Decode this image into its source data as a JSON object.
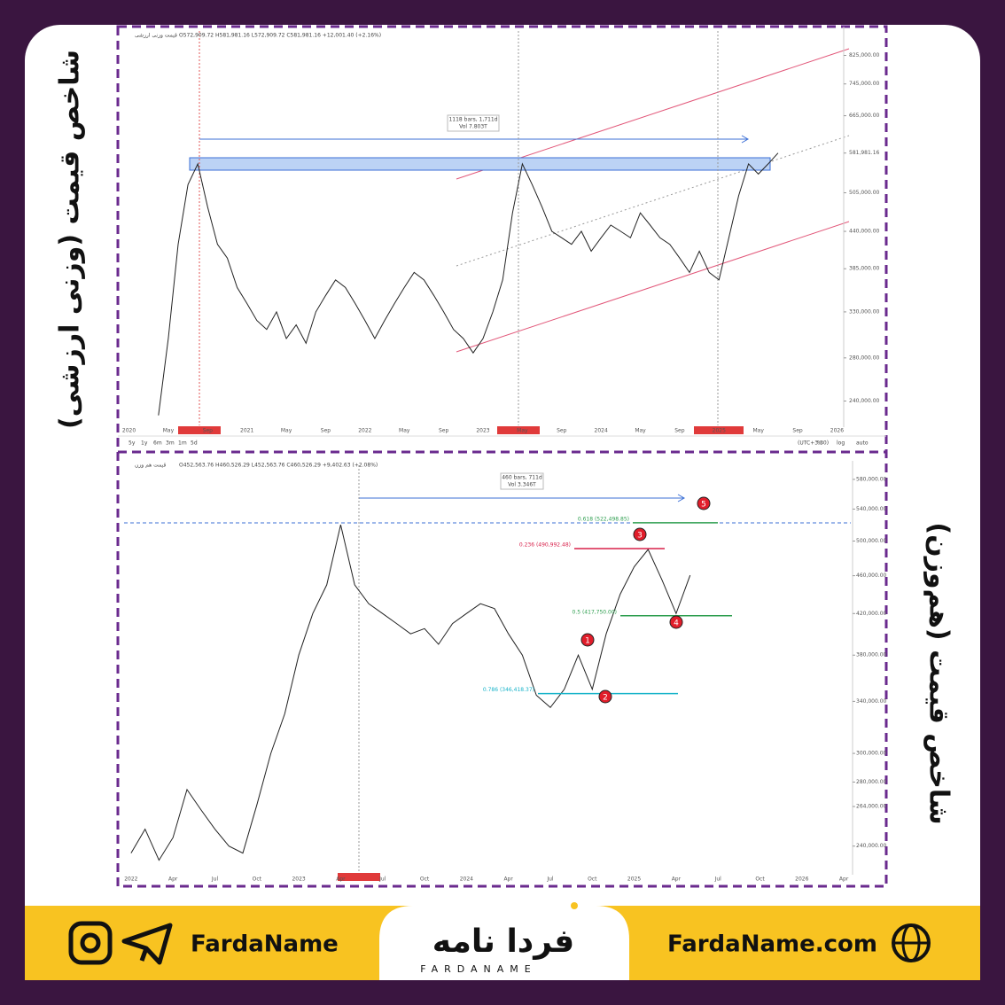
{
  "chart_data": [
    {
      "type": "line",
      "title": "قیمت وزنی ارزشی",
      "subtitle": "O572,909.72 H581,981.16 L572,909.72 C581,981.16 +12,001.40 (+2.16%)",
      "measure": [
        "1118 bars, 1,711d",
        "Vol 7.803T"
      ],
      "categories": [
        "2020",
        null,
        null,
        null,
        "May",
        null,
        null,
        null,
        "Sep",
        null,
        null,
        null,
        "2021",
        null,
        null,
        null,
        "May",
        null,
        null,
        null,
        "Sep",
        null,
        null,
        null,
        "2022",
        null,
        null,
        null,
        "May",
        null,
        null,
        null,
        "Sep",
        null,
        null,
        null,
        "2023",
        null,
        null,
        null,
        "May",
        null,
        null,
        null,
        "Sep",
        null,
        null,
        null,
        "2024",
        null,
        null,
        null,
        "May",
        null,
        null,
        null,
        "Sep",
        null,
        null,
        null,
        "2025",
        null,
        null,
        null,
        "May",
        null,
        null,
        null,
        "Sep",
        null,
        null,
        null,
        "2026"
      ],
      "series": [
        {
          "color": "#222222",
          "values": [
            null,
            null,
            null,
            228000,
            300000,
            420000,
            520000,
            560000,
            480000,
            420000,
            400000,
            360000,
            340000,
            320000,
            310000,
            330000,
            300000,
            315000,
            295000,
            330000,
            350000,
            370000,
            360000,
            340000,
            320000,
            300000,
            320000,
            340000,
            360000,
            380000,
            370000,
            350000,
            330000,
            310000,
            300000,
            285000,
            300000,
            330000,
            370000,
            470000,
            560000,
            520000,
            480000,
            440000,
            430000,
            420000,
            440000,
            410000,
            430000,
            450000,
            440000,
            430000,
            470000,
            450000,
            430000,
            420000,
            400000,
            380000,
            410000,
            380000,
            370000,
            430000,
            500000,
            560000,
            540000,
            560000,
            582000,
            null,
            null,
            null,
            null,
            null,
            null
          ]
        }
      ],
      "ylim": [
        220000,
        900000
      ],
      "log_scale": true,
      "yticks": [
        {
          "value": 240000,
          "label": "240,000.00"
        },
        {
          "value": 280000,
          "label": "280,000.00"
        },
        {
          "value": 330000,
          "label": "330,000.00"
        },
        {
          "value": 385000,
          "label": "385,000.00"
        },
        {
          "value": 440000,
          "label": "440,000.00"
        },
        {
          "value": 505000,
          "label": "505,000.00"
        },
        {
          "value": 581981.16,
          "label": "581,981.16"
        },
        {
          "value": 665000,
          "label": "665,000.00"
        },
        {
          "value": 745000,
          "label": "745,000.00"
        },
        {
          "value": 825000,
          "label": "825,000.00"
        }
      ],
      "toolbar": [
        "5y",
        "1y",
        "6m",
        "3m",
        "1m",
        "5d",
        "(UTC+3:30)",
        "%",
        "log",
        "auto"
      ]
    },
    {
      "type": "line",
      "title": "قیمت هم وزن",
      "subtitle": "O452,563.76 H460,526.29 L452,563.76 C460,526.29 +9,402.63 (+2.08%)",
      "measure": [
        "460 bars, 711d",
        "Vol 3.346T"
      ],
      "categories": [
        "2022",
        null,
        null,
        "Apr",
        null,
        null,
        "Jul",
        null,
        null,
        "Oct",
        null,
        null,
        "2023",
        null,
        null,
        "Apr",
        null,
        null,
        "Jul",
        null,
        null,
        "Oct",
        null,
        null,
        "2024",
        null,
        null,
        "Apr",
        null,
        null,
        "Jul",
        null,
        null,
        "Oct",
        null,
        null,
        "2025",
        null,
        null,
        "Apr",
        null,
        null,
        "Jul",
        null,
        null,
        "Oct",
        null,
        null,
        "2026",
        null,
        null,
        "Apr"
      ],
      "series": [
        {
          "color": "#222222",
          "values": [
            236000,
            250000,
            232000,
            245000,
            275000,
            262000,
            250000,
            240000,
            236000,
            265000,
            300000,
            330000,
            380000,
            420000,
            450000,
            520000,
            450000,
            430000,
            420000,
            410000,
            400000,
            405000,
            390000,
            410000,
            420000,
            430000,
            425000,
            400000,
            380000,
            345000,
            335000,
            350000,
            380000,
            350000,
            400000,
            440000,
            470000,
            490000,
            455000,
            420000,
            460526.29,
            null,
            null,
            null,
            null,
            null,
            null,
            null,
            null,
            null,
            null,
            null
          ]
        }
      ],
      "ylim": [
        225000,
        600000
      ],
      "log_scale": true,
      "yticks": [
        {
          "value": 240000,
          "label": "240,000.00"
        },
        {
          "value": 264000,
          "label": "264,000.00"
        },
        {
          "value": 280000,
          "label": "280,000.00"
        },
        {
          "value": 300000,
          "label": "300,000.00"
        },
        {
          "value": 340000,
          "label": "340,000.00"
        },
        {
          "value": 380000,
          "label": "380,000.00"
        },
        {
          "value": 420000,
          "label": "420,000.00"
        },
        {
          "value": 460000,
          "label": "460,000.00"
        },
        {
          "value": 500000,
          "label": "500,000.00"
        },
        {
          "value": 540000,
          "label": "540,000.00"
        },
        {
          "value": 580000,
          "label": "580,000.00"
        }
      ],
      "fib_levels": [
        {
          "value": 522498.85,
          "label": "0.618 (522,498.85)",
          "color": "#2e9e4f"
        },
        {
          "value": 490992.48,
          "label": "0.236 (490,992.48)",
          "color": "#d8204a"
        },
        {
          "value": 417750,
          "label": "0.5 (417,750.00)",
          "color": "#2e9e4f"
        },
        {
          "value": 346418.37,
          "label": "0.786 (346,418.37)",
          "color": "#17b3c9"
        }
      ],
      "wave_labels": [
        "1",
        "2",
        "3",
        "4",
        "5"
      ]
    }
  ],
  "side_labels": [
    "شاخص قیمت (وزنی ارزشی)",
    "شاخص قیمت (هم‌وزن)"
  ],
  "footer": {
    "social": "FardaName",
    "logo": "فردا نامه",
    "logo_latin": "FARDANAME",
    "website": "FardaName.com"
  }
}
